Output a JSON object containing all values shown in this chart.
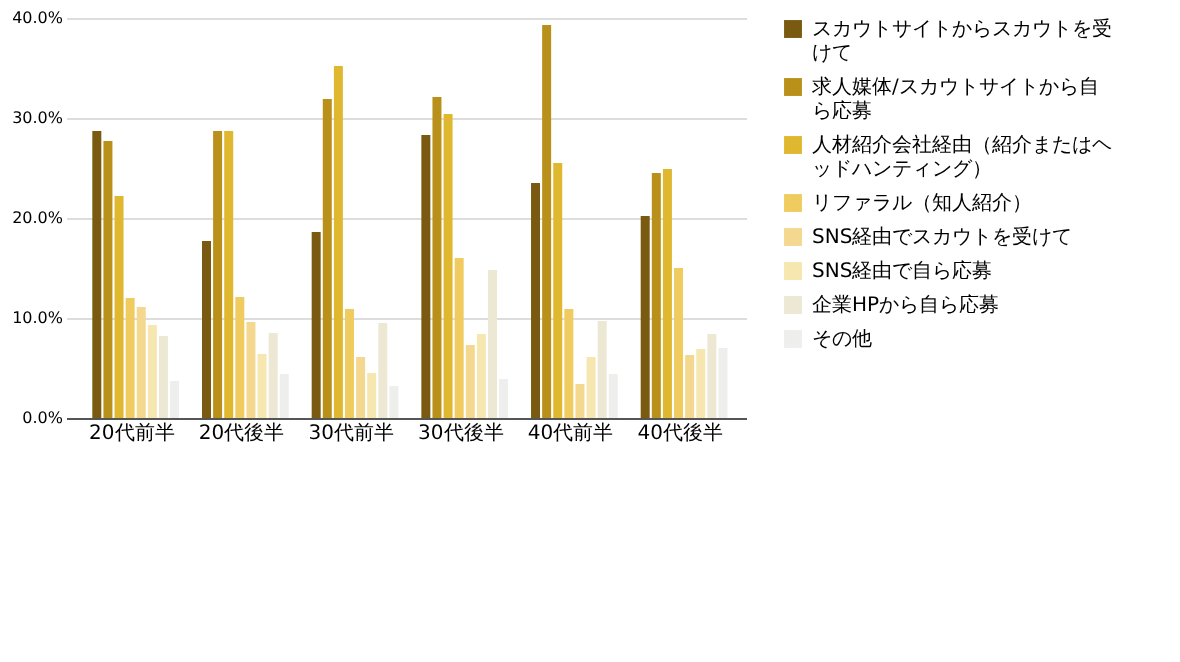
{
  "chart_data": {
    "type": "bar",
    "categories": [
      "20代前半",
      "20代後半",
      "30代前半",
      "30代後半",
      "40代前半",
      "40代後半"
    ],
    "series": [
      {
        "name": "スカウトサイトからスカウトを受けて",
        "color": "#7a5a10",
        "values": [
          28.7,
          17.7,
          18.6,
          28.3,
          23.5,
          20.2
        ]
      },
      {
        "name": "求人媒体/スカウトサイトから自ら応募",
        "color": "#b8901a",
        "values": [
          27.7,
          28.7,
          31.9,
          32.1,
          39.3,
          24.5
        ]
      },
      {
        "name": "人材紹介会社経由（紹介またはヘッドハンティング）",
        "color": "#e0b830",
        "values": [
          22.2,
          28.7,
          35.2,
          30.4,
          25.5,
          24.9
        ]
      },
      {
        "name": "リファラル（知人紹介）",
        "color": "#f0cc60",
        "values": [
          12.0,
          12.1,
          10.9,
          16.0,
          10.9,
          15.0
        ]
      },
      {
        "name": "SNS経由でスカウトを受けて",
        "color": "#f4d890",
        "values": [
          11.1,
          9.6,
          6.1,
          7.3,
          3.4,
          6.3
        ]
      },
      {
        "name": "SNS経由で自ら応募",
        "color": "#f6e6b0",
        "values": [
          9.3,
          6.4,
          4.5,
          8.4,
          6.1,
          6.9
        ]
      },
      {
        "name": "企業HPから自ら応募",
        "color": "#ede8d4",
        "values": [
          8.2,
          8.5,
          9.5,
          14.8,
          9.7,
          8.4
        ]
      },
      {
        "name": "その他",
        "color": "#eeeeec",
        "values": [
          3.7,
          4.4,
          3.2,
          3.9,
          4.4,
          7.0
        ]
      }
    ],
    "ylim": [
      0,
      40
    ],
    "yticks": [
      {
        "value": 0,
        "label": "0.0%"
      },
      {
        "value": 10,
        "label": "10.0%"
      },
      {
        "value": 20,
        "label": "20.0%"
      },
      {
        "value": 30,
        "label": "30.0%"
      },
      {
        "value": 40,
        "label": "40.0%"
      }
    ],
    "grid": "y",
    "legend": "top right"
  }
}
